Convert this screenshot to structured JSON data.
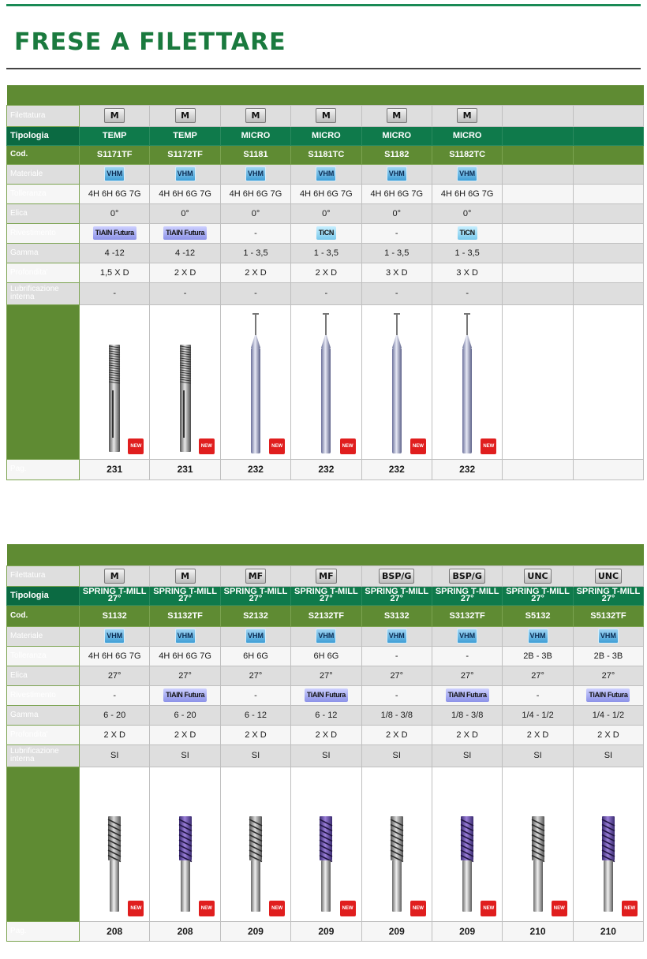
{
  "page": {
    "title": "FRESE A FILETTARE"
  },
  "labels": {
    "filettatura": "Filettatura",
    "tipologia": "Tipologia",
    "cod": "Cod.",
    "materiale": "Materiale",
    "tolleranza": "Tolleranza",
    "elica": "Elica",
    "rivestimento": "Rivestimento",
    "gamma": "Gamma",
    "profondita": "Profondita'",
    "lubrificazione": "Lubrificazione interna",
    "pag": "Pag."
  },
  "new_badge": "NEW",
  "table1": {
    "filettatura": [
      "M",
      "M",
      "M",
      "M",
      "M",
      "M"
    ],
    "tipologia": [
      "TEMP",
      "TEMP",
      "MICRO",
      "MICRO",
      "MICRO",
      "MICRO"
    ],
    "cod": [
      "S1171TF",
      "S1172TF",
      "S1181",
      "S1181TC",
      "S1182",
      "S1182TC"
    ],
    "materiale": [
      "VHM",
      "VHM",
      "VHM",
      "VHM",
      "VHM",
      "VHM"
    ],
    "tolleranza": [
      "4H 6H 6G 7G",
      "4H 6H 6G 7G",
      "4H 6H 6G 7G",
      "4H 6H 6G 7G",
      "4H 6H 6G 7G",
      "4H 6H 6G 7G"
    ],
    "elica": [
      "0°",
      "0°",
      "0°",
      "0°",
      "0°",
      "0°"
    ],
    "rivestimento": [
      "TiAlN Futura",
      "TiAlN Futura",
      "-",
      "TiCN",
      "-",
      "TiCN"
    ],
    "gamma": [
      "4 -12",
      "4 -12",
      "1 - 3,5",
      "1 - 3,5",
      "1 - 3,5",
      "1 - 3,5"
    ],
    "profondita": [
      "1,5 X D",
      "2 X D",
      "2 X D",
      "2 X D",
      "3 X D",
      "3 X D"
    ],
    "lubrificazione": [
      "-",
      "-",
      "-",
      "-",
      "-",
      "-"
    ],
    "pag": [
      "231",
      "231",
      "232",
      "232",
      "232",
      "232"
    ]
  },
  "table2": {
    "filettatura": [
      "M",
      "M",
      "MF",
      "MF",
      "BSP/G",
      "BSP/G",
      "UNC",
      "UNC"
    ],
    "tipologia": [
      "SPRING T-MILL 27°",
      "SPRING T-MILL 27°",
      "SPRING T-MILL 27°",
      "SPRING T-MILL 27°",
      "SPRING T-MILL 27°",
      "SPRING T-MILL 27°",
      "SPRING T-MILL 27°",
      "SPRING T-MILL 27°"
    ],
    "cod": [
      "S1132",
      "S1132TF",
      "S2132",
      "S2132TF",
      "S3132",
      "S3132TF",
      "S5132",
      "S5132TF"
    ],
    "materiale": [
      "VHM",
      "VHM",
      "VHM",
      "VHM",
      "VHM",
      "VHM",
      "VHM",
      "VHM"
    ],
    "tolleranza": [
      "4H 6H 6G 7G",
      "4H 6H 6G 7G",
      "6H 6G",
      "6H 6G",
      "-",
      "-",
      "2B - 3B",
      "2B - 3B"
    ],
    "elica": [
      "27°",
      "27°",
      "27°",
      "27°",
      "27°",
      "27°",
      "27°",
      "27°"
    ],
    "rivestimento": [
      "-",
      "TiAlN Futura",
      "-",
      "TiAlN Futura",
      "-",
      "TiAlN Futura",
      "-",
      "TiAlN Futura"
    ],
    "gamma": [
      "6 - 20",
      "6 - 20",
      "6 - 12",
      "6 - 12",
      "1/8 - 3/8",
      "1/8 - 3/8",
      "1/4 - 1/2",
      "1/4 - 1/2"
    ],
    "profondita": [
      "2 X D",
      "2 X D",
      "2 X D",
      "2 X D",
      "2 X D",
      "2 X D",
      "2 X D",
      "2 X D"
    ],
    "lubrificazione": [
      "SI",
      "SI",
      "SI",
      "SI",
      "SI",
      "SI",
      "SI",
      "SI"
    ],
    "pag": [
      "208",
      "208",
      "209",
      "209",
      "209",
      "209",
      "210",
      "210"
    ]
  }
}
